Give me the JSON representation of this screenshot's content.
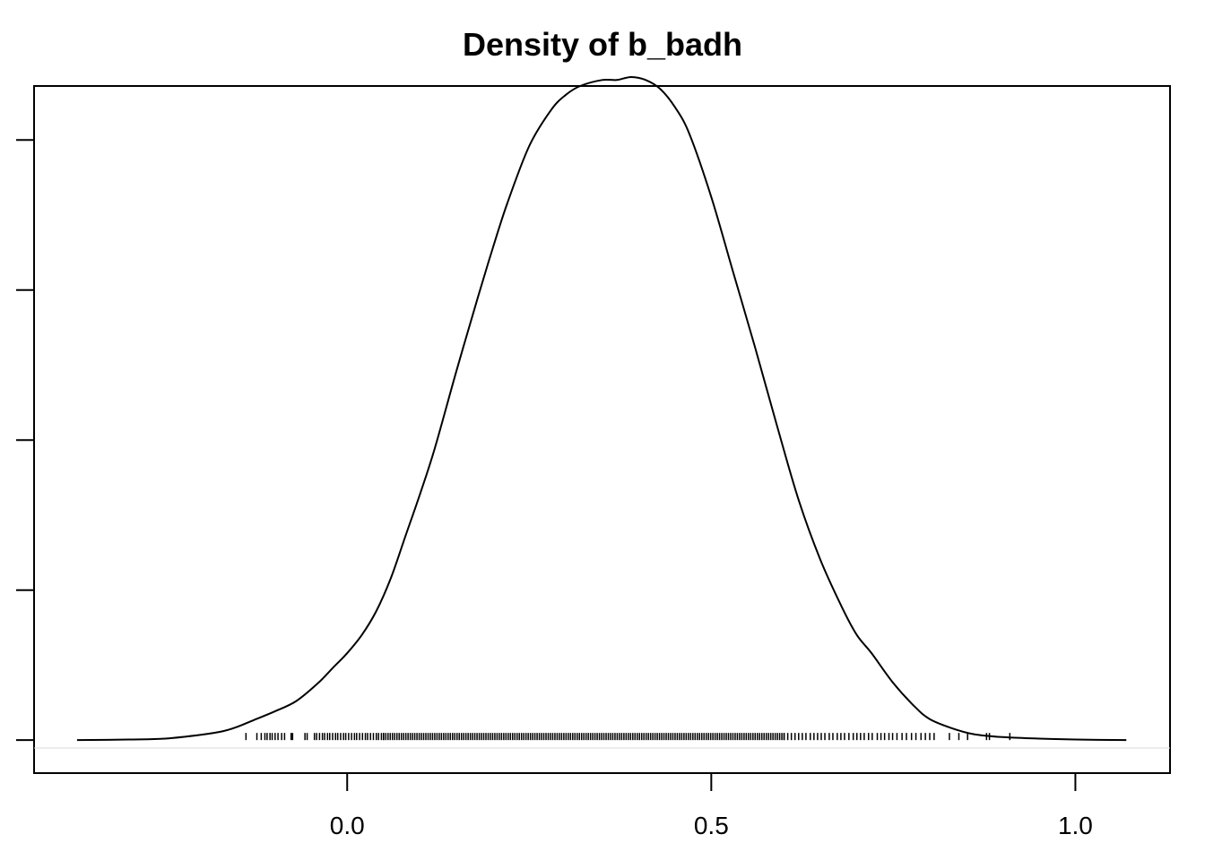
{
  "chart_data": {
    "type": "line",
    "title": "Density of b_badh",
    "xlabel": "",
    "ylabel": "",
    "xlim": [
      -0.43,
      1.13
    ],
    "ylim": [
      -0.11,
      2.18
    ],
    "x_ticks": [
      0.0,
      0.5,
      1.0
    ],
    "x_tick_labels": [
      "0.0",
      "0.5",
      "1.0"
    ],
    "y_ticks": [
      0.0,
      0.5,
      1.0,
      1.5,
      2.0
    ],
    "y_tick_labels": [
      "",
      "",
      "",
      "",
      ""
    ],
    "grid": false,
    "legend": "none",
    "series": [
      {
        "x": [
          -0.371,
          -0.3,
          -0.25,
          -0.2,
          -0.17,
          -0.15,
          -0.13,
          -0.1,
          -0.07,
          -0.04,
          -0.02,
          0.0,
          0.02,
          0.04,
          0.06,
          0.08,
          0.1,
          0.12,
          0.15,
          0.18,
          0.2,
          0.22,
          0.25,
          0.28,
          0.3,
          0.32,
          0.35,
          0.37,
          0.39,
          0.41,
          0.43,
          0.45,
          0.47,
          0.5,
          0.53,
          0.56,
          0.59,
          0.62,
          0.65,
          0.68,
          0.7,
          0.72,
          0.75,
          0.78,
          0.8,
          0.83,
          0.86,
          0.9,
          0.95,
          1.0,
          1.07
        ],
        "y": [
          0.0,
          0.002,
          0.005,
          0.018,
          0.03,
          0.045,
          0.065,
          0.095,
          0.13,
          0.19,
          0.24,
          0.29,
          0.35,
          0.43,
          0.54,
          0.68,
          0.82,
          0.97,
          1.23,
          1.48,
          1.64,
          1.79,
          1.98,
          2.1,
          2.15,
          2.18,
          2.2,
          2.2,
          2.21,
          2.2,
          2.17,
          2.11,
          2.02,
          1.81,
          1.56,
          1.31,
          1.05,
          0.8,
          0.6,
          0.44,
          0.35,
          0.29,
          0.19,
          0.11,
          0.07,
          0.04,
          0.02,
          0.01,
          0.005,
          0.002,
          0.0
        ]
      }
    ],
    "rug_x": [
      -0.139,
      -0.124,
      -0.118,
      -0.113,
      -0.11,
      -0.106,
      -0.103,
      -0.099,
      -0.095,
      -0.09,
      -0.086,
      -0.075,
      -0.077,
      -0.055,
      -0.058,
      -0.045,
      -0.042,
      -0.038,
      -0.034,
      -0.031,
      -0.027,
      -0.024,
      -0.02,
      -0.016,
      -0.013,
      -0.009,
      -0.005,
      -0.002,
      0.002,
      0.006,
      0.01,
      0.013,
      0.017,
      0.021,
      0.025,
      0.028,
      0.032,
      0.036,
      0.04,
      0.043,
      0.047,
      0.05,
      0.6,
      0.605,
      0.61,
      0.615,
      0.62,
      0.625,
      0.63,
      0.636,
      0.641,
      0.646,
      0.651,
      0.656,
      0.662,
      0.667,
      0.673,
      0.678,
      0.683,
      0.689,
      0.695,
      0.7,
      0.705,
      0.71,
      0.716,
      0.721,
      0.728,
      0.733,
      0.738,
      0.744,
      0.749,
      0.755,
      0.762,
      0.768,
      0.775,
      0.781,
      0.788,
      0.794,
      0.8,
      0.806,
      0.827,
      0.84,
      0.852,
      0.878,
      0.882,
      0.91
    ],
    "rug_dense_range": [
      0.05,
      0.6
    ]
  }
}
